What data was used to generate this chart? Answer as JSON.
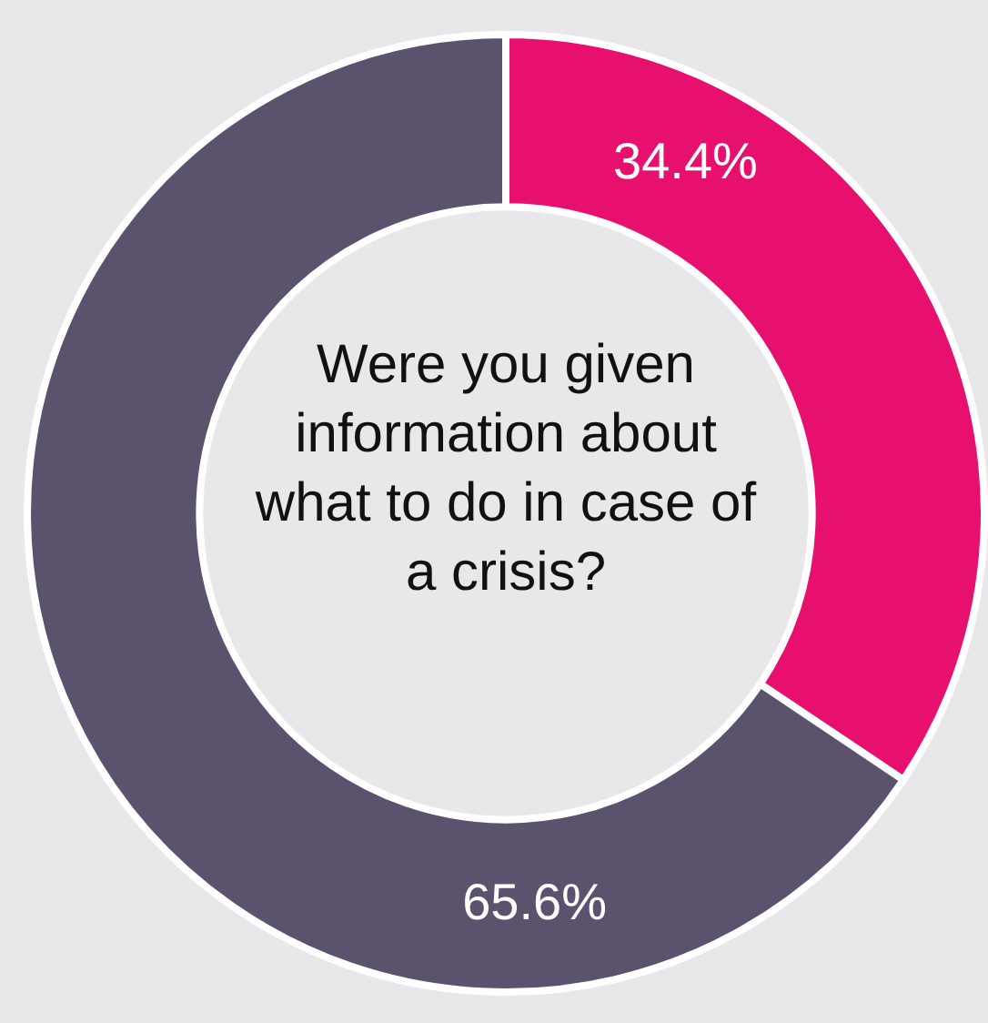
{
  "chart_data": {
    "type": "donut",
    "title": "Were you given information about what to do in case of a crisis?",
    "categories": [
      null,
      null
    ],
    "values": [
      34.4,
      65.6
    ],
    "colors": [
      "#e8106e",
      "#5b526e"
    ],
    "value_labels": [
      "34.4%",
      "65.6%"
    ],
    "legend": false
  }
}
